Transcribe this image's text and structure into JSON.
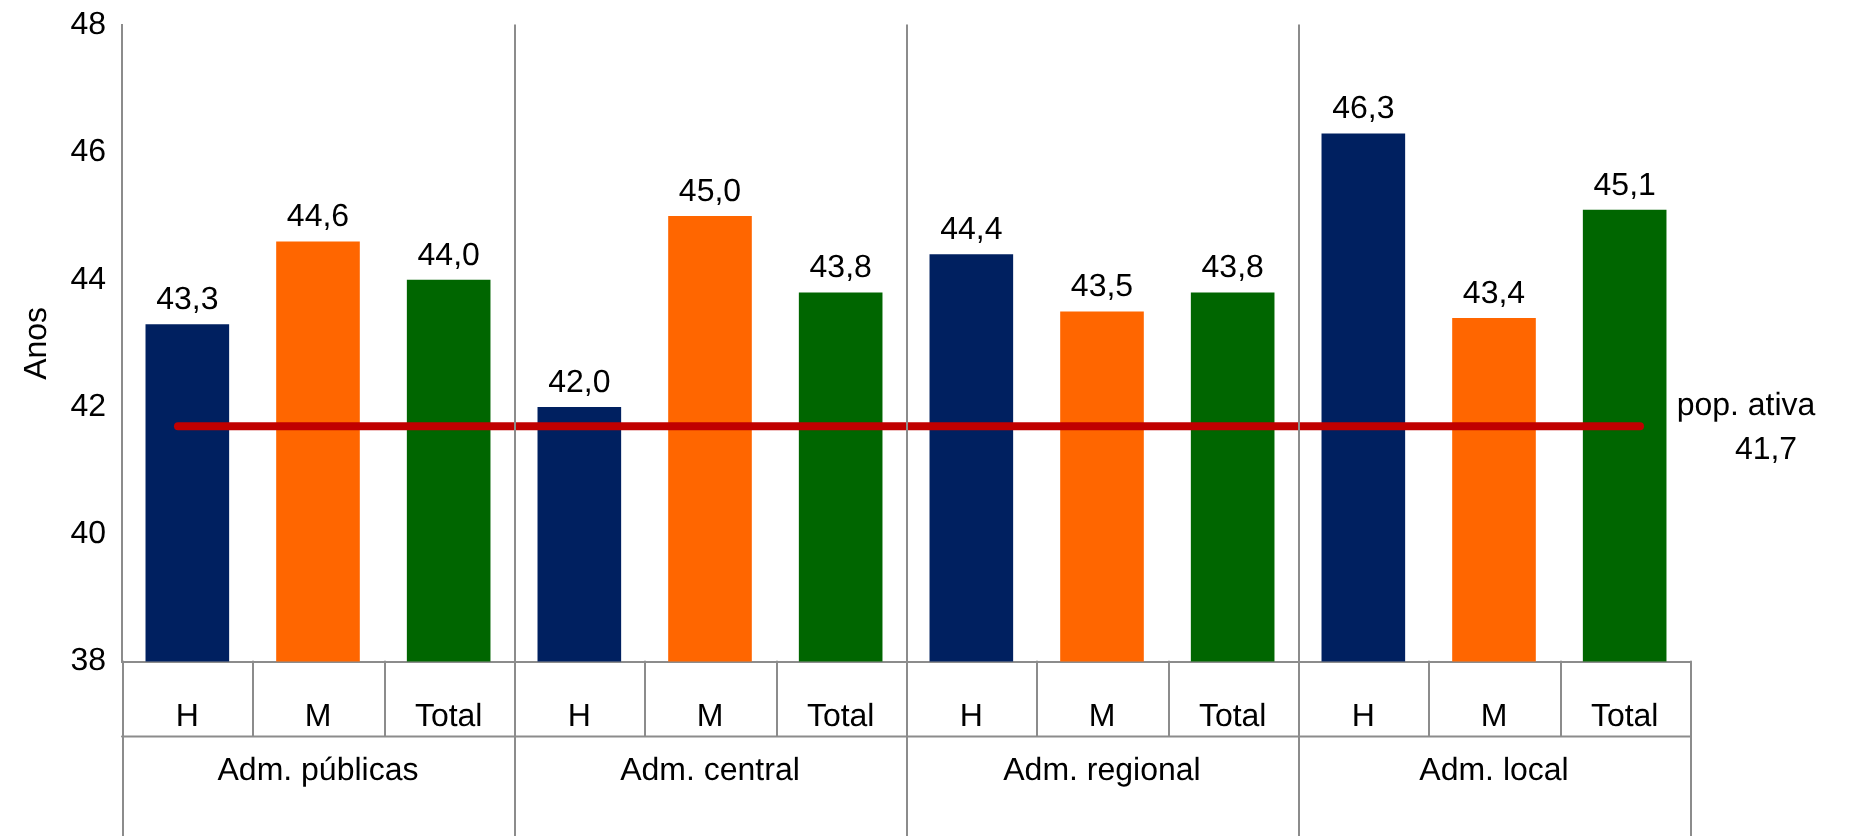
{
  "chart_data": {
    "type": "bar",
    "ylabel": "Anos",
    "categories": [
      "H",
      "M",
      "Total",
      "H",
      "M",
      "Total",
      "H",
      "M",
      "Total",
      "H",
      "M",
      "Total"
    ],
    "values": [
      43.3,
      44.6,
      44.0,
      42.0,
      45.0,
      43.8,
      44.4,
      43.5,
      43.8,
      46.3,
      43.4,
      45.1
    ],
    "value_labels": [
      "43,3",
      "44,6",
      "44,0",
      "42,0",
      "45,0",
      "43,8",
      "44,4",
      "43,5",
      "43,8",
      "46,3",
      "43,4",
      "45,1"
    ],
    "colors": [
      "#002060",
      "#ff6600",
      "#006600",
      "#002060",
      "#ff6600",
      "#006600",
      "#002060",
      "#ff6600",
      "#006600",
      "#002060",
      "#ff6600",
      "#006600"
    ],
    "ylim": [
      38,
      48
    ],
    "yticks": [
      38,
      40,
      42,
      44,
      46,
      48
    ],
    "grid": false,
    "legend": false,
    "ref_lines": [
      {
        "axis": "y",
        "value": 41.7,
        "label": "pop. ativa 41,7",
        "color": "#c00000"
      }
    ],
    "annotations": [
      "Adm. públicas",
      "Adm. central",
      "Adm. regional",
      "Adm. local"
    ]
  }
}
